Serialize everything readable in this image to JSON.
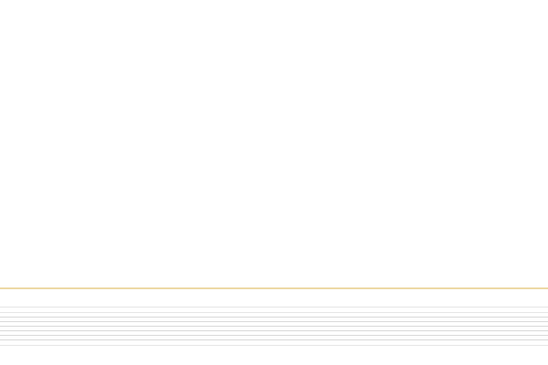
{
  "theme": {
    "background": "#ffffff",
    "accent_divider": "#edd9a6",
    "rule_line": "#d9d9d9"
  }
}
